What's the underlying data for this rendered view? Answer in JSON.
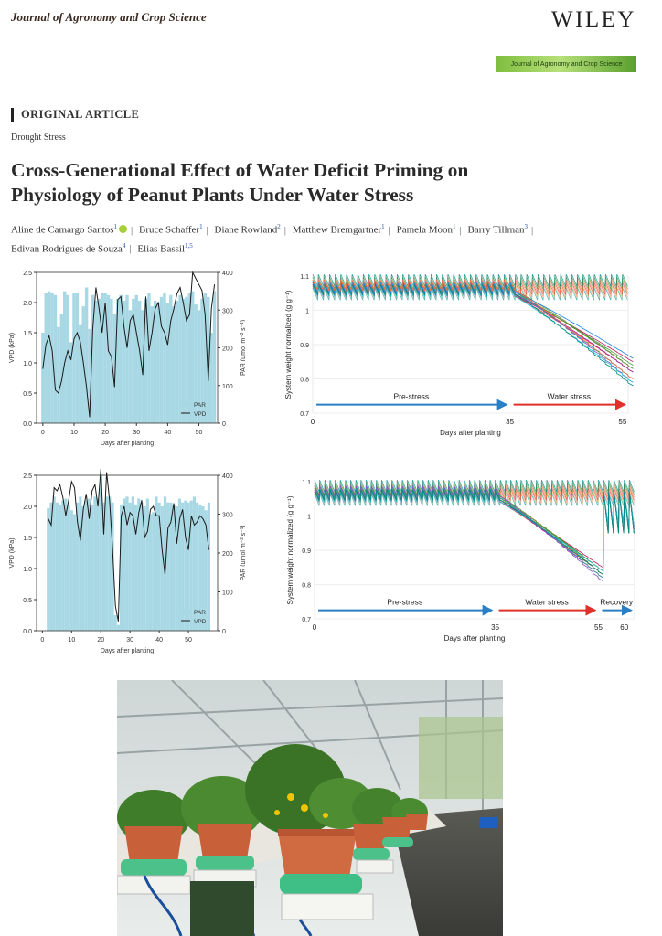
{
  "header": {
    "journal": "Journal of Agronomy and Crop Science",
    "publisher": "WILEY",
    "banner_text": "Journal of Agronomy and Crop Science"
  },
  "article": {
    "type": "ORIGINAL ARTICLE",
    "subject": "Drought Stress",
    "title_line1": "Cross-Generational Effect of Water Deficit Priming on",
    "title_line2": "Physiology of Peanut Plants Under Water Stress",
    "authors": [
      {
        "name": "Aline de Camargo Santos",
        "aff": "1"
      },
      {
        "name": "Bruce Schaffer",
        "aff": "1"
      },
      {
        "name": "Diane Rowland",
        "aff": "2"
      },
      {
        "name": "Matthew Bremgartner",
        "aff": "1"
      },
      {
        "name": "Pamela Moon",
        "aff": "1"
      },
      {
        "name": "Barry Tillman",
        "aff": "3"
      },
      {
        "name": "Edivan Rodrigues de Souza",
        "aff": "4"
      },
      {
        "name": "Elias Bassil",
        "aff": "1,5"
      }
    ]
  },
  "chart_data": [
    {
      "type": "bar",
      "xlabel": "Days after planting",
      "ylabel": "VPD (kPa)",
      "y2label": "PAR (μmol m⁻² s⁻¹)",
      "xlim": [
        -2,
        56
      ],
      "ylim": [
        0,
        2.5
      ],
      "y2lim": [
        0,
        400
      ],
      "xticks": [
        0,
        10,
        20,
        30,
        40,
        50
      ],
      "yticks": [
        "0.0",
        "0.5",
        "1.0",
        "1.5",
        "2.0",
        "2.5"
      ],
      "y2ticks": [
        "0",
        "100",
        "200",
        "300",
        "400"
      ],
      "legend": [
        "PAR",
        "VPD"
      ],
      "legend_position": "bottom-right",
      "series": [
        {
          "name": "PAR",
          "kind": "bar",
          "x_start": 0,
          "values": [
            240,
            345,
            350,
            345,
            340,
            255,
            290,
            350,
            340,
            215,
            345,
            345,
            260,
            310,
            360,
            250,
            340,
            325,
            330,
            345,
            345,
            340,
            330,
            290,
            330,
            340,
            325,
            340,
            300,
            330,
            340,
            325,
            300,
            330,
            345,
            310,
            325,
            320,
            335,
            345,
            320,
            340,
            310,
            325,
            340,
            330,
            335,
            345,
            350,
            315,
            300,
            330,
            345,
            335,
            240,
            350
          ]
        },
        {
          "name": "VPD",
          "kind": "line",
          "x_start": 0,
          "values": [
            0.9,
            1.3,
            1.45,
            1.2,
            0.55,
            0.5,
            0.7,
            1.0,
            1.2,
            1.05,
            1.4,
            1.5,
            1.35,
            1.0,
            0.6,
            0.1,
            1.55,
            2.25,
            1.9,
            1.5,
            2.0,
            1.2,
            1.1,
            0.6,
            2.05,
            2.1,
            1.6,
            1.25,
            1.7,
            1.8,
            1.5,
            1.2,
            0.8,
            2.1,
            1.2,
            1.5,
            1.9,
            2.0,
            1.6,
            1.5,
            1.3,
            1.7,
            1.9,
            2.15,
            2.25,
            2.0,
            1.7,
            1.8,
            2.5,
            2.4,
            2.3,
            2.2,
            1.8,
            0.7,
            1.9,
            2.3
          ]
        }
      ]
    },
    {
      "type": "line",
      "xlabel": "Days after planting",
      "ylabel": "System weight normalized (g g⁻¹)",
      "xlim": [
        0,
        56
      ],
      "ylim": [
        0.7,
        1.1
      ],
      "xticks": [
        0,
        35,
        55
      ],
      "yticks": [
        "0.7",
        "0.8",
        "0.9",
        "1",
        "1.1"
      ],
      "phases": [
        {
          "label": "Pre-stress",
          "from": 0,
          "to": 35
        },
        {
          "label": "Water stress",
          "from": 35,
          "to": 56
        }
      ],
      "series": [
        {
          "group": "control",
          "final": 1.06,
          "count": 6
        },
        {
          "group": "stressed",
          "final": [
            0.85,
            0.84,
            0.83,
            0.83,
            0.82,
            0.82,
            0.8,
            0.79,
            0.79,
            0.78,
            0.86,
            0.8
          ]
        }
      ]
    },
    {
      "type": "bar",
      "xlabel": "Days after planting",
      "ylabel": "VPD (kPa)",
      "y2label": "PAR (μmol m⁻² s⁻¹)",
      "xlim": [
        -2,
        60
      ],
      "ylim": [
        0,
        2.5
      ],
      "y2lim": [
        0,
        400
      ],
      "xticks": [
        0,
        10,
        20,
        30,
        40,
        50
      ],
      "yticks": [
        "0.0",
        "0.5",
        "1.0",
        "1.5",
        "2.0",
        "2.5"
      ],
      "y2ticks": [
        "0",
        "100",
        "200",
        "300",
        "400"
      ],
      "legend": [
        "PAR",
        "VPD"
      ],
      "legend_position": "bottom-right",
      "series": [
        {
          "name": "PAR",
          "kind": "bar",
          "x_start": 2,
          "values": [
            315,
            330,
            345,
            330,
            325,
            335,
            340,
            325,
            310,
            300,
            330,
            345,
            320,
            335,
            340,
            325,
            345,
            340,
            400,
            330,
            345,
            345,
            330,
            40,
            15,
            325,
            340,
            345,
            330,
            345,
            325,
            340,
            330,
            320,
            340,
            300,
            305,
            345,
            330,
            320,
            345,
            330,
            330,
            325,
            320,
            340,
            330,
            335,
            330,
            335,
            345,
            330,
            325,
            320,
            310,
            330
          ]
        },
        {
          "name": "VPD",
          "kind": "line",
          "x_start": 2,
          "values": [
            1.8,
            1.7,
            2.3,
            2.25,
            2.35,
            2.15,
            1.85,
            2.1,
            2.4,
            2.3,
            1.75,
            1.45,
            1.95,
            2.2,
            1.8,
            2.25,
            2.35,
            2.0,
            2.6,
            1.55,
            2.55,
            2.1,
            1.35,
            0.4,
            0.15,
            1.85,
            2.0,
            1.7,
            1.9,
            1.85,
            1.55,
            1.9,
            2.1,
            1.5,
            1.6,
            1.95,
            2.0,
            1.85,
            1.85,
            1.3,
            0.9,
            1.65,
            1.75,
            2.05,
            1.4,
            1.8,
            1.95,
            1.5,
            1.3,
            1.85,
            1.7,
            1.75,
            1.85,
            1.8,
            1.7,
            1.3
          ]
        }
      ]
    },
    {
      "type": "line",
      "xlabel": "Days after planting",
      "ylabel": "System weight normalized (g g⁻¹)",
      "xlim": [
        0,
        62
      ],
      "ylim": [
        0.7,
        1.1
      ],
      "xticks": [
        0,
        35,
        55,
        60
      ],
      "yticks": [
        "0.7",
        "0.8",
        "0.9",
        "1",
        "1.1"
      ],
      "phases": [
        {
          "label": "Pre-stress",
          "from": 0,
          "to": 35
        },
        {
          "label": "Water stress",
          "from": 35,
          "to": 55
        },
        {
          "label": "Recovery",
          "from": 55,
          "to": 62
        }
      ],
      "series": [
        {
          "group": "control",
          "count": 6
        },
        {
          "group": "stressed",
          "final": [
            0.85,
            0.84,
            0.84,
            0.83,
            0.83,
            0.82,
            0.82,
            0.81,
            0.84,
            0.83
          ]
        }
      ]
    }
  ],
  "colors": {
    "par_bar": "#a8d8e4",
    "vpd_line": "#1a1a1a",
    "prestress_arrow": "#2b7fc4",
    "stress_arrow": "#e0302a",
    "recovery_arrow": "#2b7fc4",
    "series_palette": [
      "#2aa198",
      "#6a8f3a",
      "#c2185b",
      "#f4a261",
      "#1e88e5",
      "#7e57c2",
      "#e53935",
      "#43a047",
      "#8d6e63",
      "#ff7043",
      "#26c6da",
      "#9c27b0",
      "#558b2f",
      "#ef6c00",
      "#5c6bc0",
      "#00897b"
    ]
  }
}
